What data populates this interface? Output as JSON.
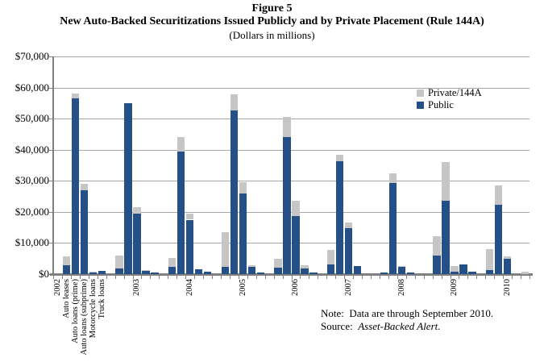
{
  "figure": {
    "label": "Figure 5",
    "title": "New Auto-Backed Securitizations Issued Publicly and by Private Placement (Rule 144A)",
    "units": "(Dollars in millions)"
  },
  "legend": [
    {
      "label": "Private/144A",
      "color": "#c6c6c6"
    },
    {
      "label": "Public",
      "color": "#254f87"
    }
  ],
  "notes": {
    "note_label": "Note:",
    "note_text": "Data are through September 2010.",
    "source_label": "Source:",
    "source_text": "Asset-Backed Alert."
  },
  "chart_data": {
    "type": "bar",
    "stacked": true,
    "title": "Figure 5",
    "subtitle": "New Auto-Backed Securitizations Issued Publicly and by Private Placement (Rule 144A)",
    "units": "Dollars in millions",
    "grid": true,
    "legend_position": "upper right inside plot",
    "ylim": [
      0,
      70000
    ],
    "ytick_values": [
      70000,
      60000,
      50000,
      40000,
      30000,
      20000,
      10000,
      0
    ],
    "ytick_labels": [
      "$70,000",
      "$60,000",
      "$50,000",
      "$40,000",
      "$30,000",
      "$20,000",
      "$10,000",
      "$0"
    ],
    "years": [
      "2002",
      "2003",
      "2004",
      "2005",
      "2006",
      "2007",
      "2008",
      "2009",
      "2010"
    ],
    "categories_per_year": [
      "Auto leases",
      "Auto loans (prime)",
      "Auto loans (subprime)",
      "Motorcycle loans",
      "Truck loans"
    ],
    "series": [
      {
        "name": "Public",
        "color": "#254f87",
        "values": [
          [
            2800,
            56600,
            27000,
            600,
            1000
          ],
          [
            1700,
            55000,
            19500,
            1300,
            500
          ],
          [
            2300,
            39300,
            17500,
            1500,
            900
          ],
          [
            2400,
            52600,
            26000,
            2300,
            400
          ],
          [
            2200,
            44100,
            18700,
            1700,
            400
          ],
          [
            3000,
            36300,
            14800,
            2600,
            0
          ],
          [
            400,
            29200,
            2300,
            400,
            0
          ],
          [
            6000,
            23500,
            700,
            3000,
            800
          ],
          [
            1300,
            22200,
            5000,
            0,
            0
          ]
        ]
      },
      {
        "name": "Private/144A",
        "color": "#c6c6c6",
        "values": [
          [
            3000,
            1500,
            2000,
            100,
            0
          ],
          [
            4300,
            0,
            2100,
            100,
            0
          ],
          [
            3000,
            4800,
            2000,
            0,
            0
          ],
          [
            11100,
            5100,
            3500,
            500,
            0
          ],
          [
            2800,
            6400,
            4900,
            1100,
            0
          ],
          [
            4800,
            2000,
            1900,
            0,
            0
          ],
          [
            0,
            3200,
            400,
            0,
            0
          ],
          [
            6300,
            12500,
            1800,
            0,
            0
          ],
          [
            6700,
            6300,
            800,
            0,
            700
          ]
        ]
      }
    ]
  }
}
